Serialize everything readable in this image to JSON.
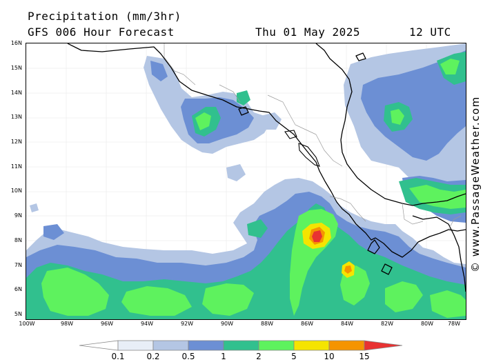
{
  "header": {
    "title": "Precipitation (mm/3hr)",
    "subtitle": "GFS 006 Hour Forecast",
    "date": "Thu 01 May 2025",
    "time": "12 UTC"
  },
  "credit": "© www.PassageWeather.com",
  "axes": {
    "lat_labels": [
      "16N",
      "15N",
      "14N",
      "13N",
      "12N",
      "11N",
      "10N",
      "9N",
      "8N",
      "7N",
      "6N",
      "5N"
    ],
    "lon_labels": [
      "100W",
      "98W",
      "96W",
      "94W",
      "92W",
      "90W",
      "88W",
      "86W",
      "84W",
      "82W",
      "80W",
      "78W"
    ]
  },
  "legend": {
    "labels": [
      "0.1",
      "0.2",
      "0.5",
      "1",
      "2",
      "5",
      "10",
      "15"
    ],
    "colors": [
      "#e8eef7",
      "#b4c6e4",
      "#6c8fd4",
      "#31c08e",
      "#5ef25e",
      "#f5e400",
      "#f59400",
      "#e83232"
    ]
  },
  "colors": {
    "light_blue": "#b4c6e4",
    "mid_blue": "#6c8fd4",
    "teal": "#31c08e",
    "green": "#5ef25e",
    "yellow": "#f5e400",
    "orange": "#f59400",
    "red": "#e83232"
  }
}
